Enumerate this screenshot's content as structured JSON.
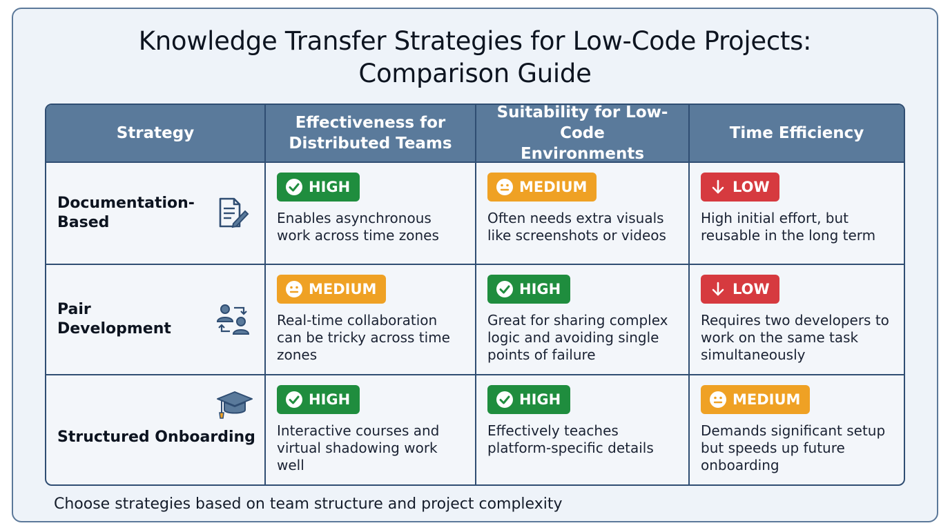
{
  "title_line1": "Knowledge Transfer Strategies for Low-Code Projects:",
  "title_line2": "Comparison Guide",
  "headers": {
    "strategy": "Strategy",
    "effectiveness": "Effectiveness for Distributed Teams",
    "suitability": "Suitability for Low-Code Environments",
    "time": "Time Efficiency"
  },
  "rows": [
    {
      "strategy": "Documentation-Based",
      "icon": "document-edit-icon",
      "effectiveness": {
        "level": "HIGH",
        "text": "Enables asynchronous work across time zones"
      },
      "suitability": {
        "level": "MEDIUM",
        "text": "Often needs extra visuals like screenshots or videos"
      },
      "time": {
        "level": "LOW",
        "text": "High initial effort, but reusable in the long term"
      }
    },
    {
      "strategy": "Pair Development",
      "icon": "pair-users-icon",
      "effectiveness": {
        "level": "MEDIUM",
        "text": "Real-time collaboration can be tricky across time zones"
      },
      "suitability": {
        "level": "HIGH",
        "text": "Great for sharing complex logic and avoiding single points of failure"
      },
      "time": {
        "level": "LOW",
        "text": "Requires two developers to work on the same task simultaneously"
      }
    },
    {
      "strategy": "Structured Onboarding",
      "icon": "graduation-cap-icon",
      "effectiveness": {
        "level": "HIGH",
        "text": "Interactive courses and virtual shadowing work well"
      },
      "suitability": {
        "level": "HIGH",
        "text": "Effectively teaches platform-specific details"
      },
      "time": {
        "level": "MEDIUM",
        "text": "Demands significant setup but speeds up future onboarding"
      }
    }
  ],
  "footnote": "Choose strategies based on team structure and project complexity",
  "colors": {
    "high": "#1f8d3e",
    "medium": "#efa124",
    "low": "#d63a3f",
    "header": "#5a7a9b",
    "border": "#2f4d72"
  }
}
